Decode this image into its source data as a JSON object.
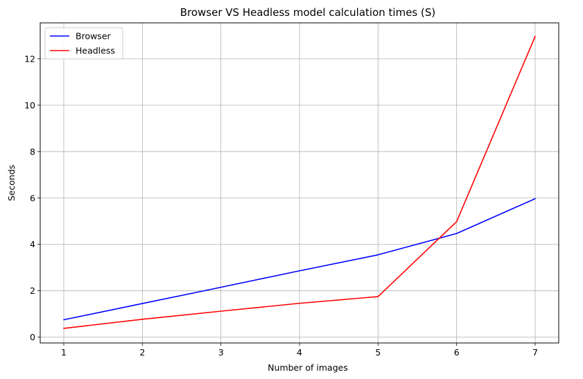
{
  "chart_data": {
    "type": "line",
    "title": "Browser VS Headless model calculation times (S)",
    "xlabel": "Number of images",
    "ylabel": "Seconds",
    "x": [
      1,
      2,
      3,
      4,
      5,
      6,
      7
    ],
    "xlim": [
      0.7,
      7.3
    ],
    "ylim": [
      -0.25,
      13.55
    ],
    "xticks": [
      1,
      2,
      3,
      4,
      5,
      6,
      7
    ],
    "yticks": [
      0,
      2,
      4,
      6,
      8,
      10,
      12
    ],
    "grid": true,
    "legend_position": "top-left",
    "series": [
      {
        "name": "Browser",
        "color": "#0000ff",
        "values": [
          0.75,
          1.45,
          2.15,
          2.86,
          3.55,
          4.47,
          5.97
        ]
      },
      {
        "name": "Headless",
        "color": "#ff0000",
        "values": [
          0.38,
          0.77,
          1.12,
          1.46,
          1.75,
          4.98,
          12.97
        ]
      }
    ]
  }
}
